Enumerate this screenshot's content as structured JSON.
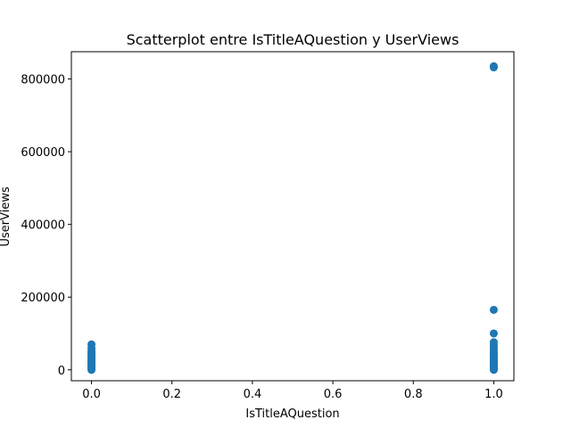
{
  "chart_data": {
    "type": "scatter",
    "title": "Scatterplot entre IsTitleAQuestion y UserViews",
    "xlabel": "IsTitleAQuestion",
    "ylabel": "UserViews",
    "xlim": [
      -0.05,
      1.05
    ],
    "ylim": [
      -30000,
      875000
    ],
    "xticks": [
      0.0,
      0.2,
      0.4,
      0.6,
      0.8,
      1.0
    ],
    "xtick_labels": [
      "0.0",
      "0.2",
      "0.4",
      "0.6",
      "0.8",
      "1.0"
    ],
    "yticks": [
      0,
      200000,
      400000,
      600000,
      800000
    ],
    "ytick_labels": [
      "0",
      "200000",
      "400000",
      "600000",
      "800000"
    ],
    "grid": false,
    "marker_color": "#1f77b4",
    "series": [
      {
        "x": [
          0,
          0,
          0,
          0,
          0,
          0,
          0,
          0,
          0,
          0,
          0,
          0,
          0,
          0,
          0,
          0,
          0,
          0,
          1,
          1,
          1,
          1,
          1,
          1,
          1,
          1,
          1,
          1,
          1,
          1,
          1,
          1,
          1,
          1,
          1,
          1,
          1,
          1,
          1,
          1,
          1
        ],
        "y": [
          0,
          3000,
          6000,
          9000,
          12000,
          15000,
          18000,
          21000,
          24000,
          27000,
          30000,
          33000,
          37000,
          41000,
          46000,
          52000,
          60000,
          70000,
          0,
          3000,
          6000,
          9000,
          12000,
          15000,
          18000,
          21000,
          24000,
          27000,
          30000,
          34000,
          38000,
          43000,
          48000,
          55000,
          62000,
          68000,
          76000,
          100000,
          165000,
          832000,
          835000
        ]
      }
    ]
  }
}
